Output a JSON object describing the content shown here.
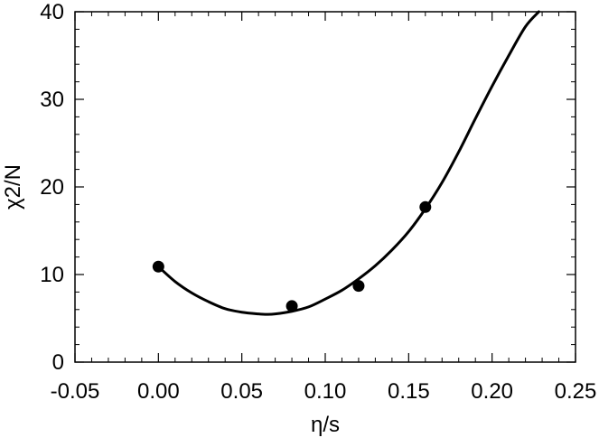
{
  "chart_data": {
    "type": "scatter",
    "title": "",
    "xlabel": "η/s",
    "ylabel": "χ2/N",
    "xlim": [
      -0.05,
      0.25
    ],
    "ylim": [
      0,
      40
    ],
    "grid": false,
    "x_ticks": [
      -0.05,
      0.0,
      0.05,
      0.1,
      0.15,
      0.2,
      0.25
    ],
    "x_tick_labels": [
      "-0.05",
      "0.00",
      "0.05",
      "0.10",
      "0.15",
      "0.20",
      "0.25"
    ],
    "y_ticks": [
      0,
      10,
      20,
      30,
      40
    ],
    "y_tick_labels": [
      "0",
      "10",
      "20",
      "30",
      "40"
    ],
    "points": [
      {
        "x": 0.0,
        "y": 10.9
      },
      {
        "x": 0.08,
        "y": 6.4
      },
      {
        "x": 0.12,
        "y": 8.7
      },
      {
        "x": 0.16,
        "y": 17.7
      }
    ],
    "fit_curve": {
      "description_type": "line",
      "x_range": [
        0.0,
        0.228
      ],
      "x": [
        0.0,
        0.01,
        0.02,
        0.03,
        0.04,
        0.05,
        0.06,
        0.065,
        0.07,
        0.08,
        0.09,
        0.1,
        0.11,
        0.12,
        0.13,
        0.14,
        0.15,
        0.16,
        0.17,
        0.18,
        0.19,
        0.2,
        0.21,
        0.22,
        0.228
      ],
      "y": [
        10.9,
        9.2,
        7.9,
        6.9,
        6.1,
        5.7,
        5.5,
        5.45,
        5.5,
        5.8,
        6.3,
        7.2,
        8.2,
        9.5,
        11.0,
        12.8,
        14.9,
        17.5,
        20.5,
        24.0,
        27.8,
        31.5,
        35.0,
        38.3,
        40.0
      ]
    },
    "colors": {
      "axis": "#000000",
      "points": "#000000",
      "curve": "#000000"
    }
  }
}
